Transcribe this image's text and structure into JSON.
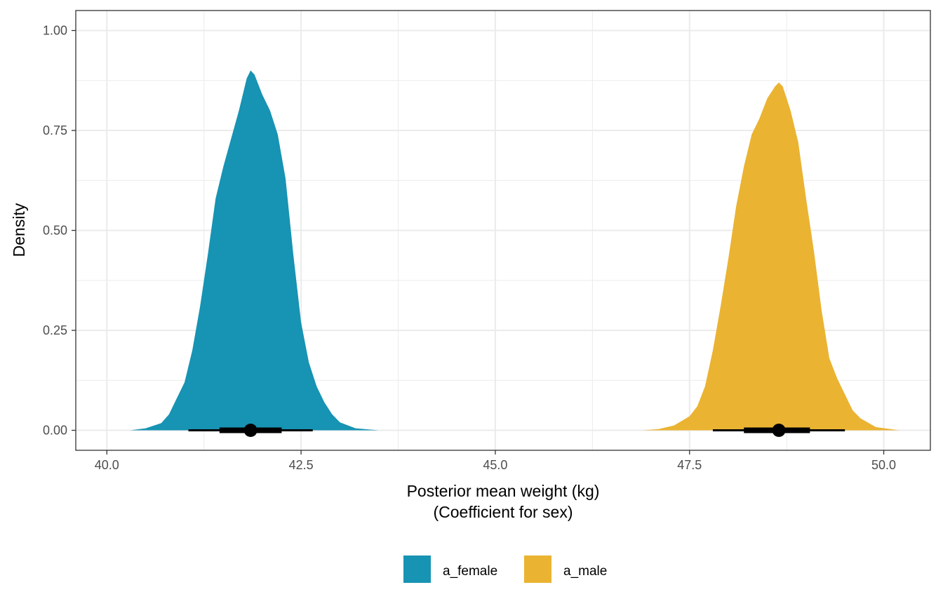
{
  "chart_data": {
    "type": "area",
    "subtype": "density (halfeye) with point interval",
    "xlabel_line1": "Posterior mean weight (kg)",
    "xlabel_line2": "(Coefficient for sex)",
    "ylabel": "Density",
    "xlim": [
      39.6,
      50.6
    ],
    "ylim": [
      -0.05,
      1.05
    ],
    "x_ticks": [
      40.0,
      42.5,
      45.0,
      47.5,
      50.0
    ],
    "x_tick_labels": [
      "40.0",
      "42.5",
      "45.0",
      "47.5",
      "50.0"
    ],
    "y_ticks": [
      0.0,
      0.25,
      0.5,
      0.75,
      1.0
    ],
    "y_tick_labels": [
      "0.00",
      "0.25",
      "0.50",
      "0.75",
      "1.00"
    ],
    "grid": true,
    "legend_position": "bottom",
    "series": [
      {
        "name": "a_female",
        "color": "#1793B3",
        "density": [
          [
            40.3,
            0.0
          ],
          [
            40.5,
            0.005
          ],
          [
            40.7,
            0.018
          ],
          [
            40.8,
            0.04
          ],
          [
            40.9,
            0.08
          ],
          [
            41.0,
            0.12
          ],
          [
            41.1,
            0.2
          ],
          [
            41.2,
            0.31
          ],
          [
            41.3,
            0.44
          ],
          [
            41.4,
            0.58
          ],
          [
            41.5,
            0.66
          ],
          [
            41.6,
            0.73
          ],
          [
            41.7,
            0.8
          ],
          [
            41.8,
            0.88
          ],
          [
            41.85,
            0.9
          ],
          [
            41.9,
            0.89
          ],
          [
            42.0,
            0.84
          ],
          [
            42.1,
            0.8
          ],
          [
            42.2,
            0.74
          ],
          [
            42.3,
            0.63
          ],
          [
            42.4,
            0.44
          ],
          [
            42.5,
            0.27
          ],
          [
            42.6,
            0.17
          ],
          [
            42.7,
            0.11
          ],
          [
            42.8,
            0.07
          ],
          [
            42.9,
            0.04
          ],
          [
            43.0,
            0.02
          ],
          [
            43.2,
            0.005
          ],
          [
            43.5,
            0.0
          ]
        ],
        "point": 41.85,
        "interval_66": [
          41.45,
          42.25
        ],
        "interval_95": [
          41.05,
          42.65
        ]
      },
      {
        "name": "a_male",
        "color": "#EAB332",
        "density": [
          [
            46.9,
            0.0
          ],
          [
            47.1,
            0.003
          ],
          [
            47.3,
            0.012
          ],
          [
            47.5,
            0.035
          ],
          [
            47.6,
            0.06
          ],
          [
            47.7,
            0.11
          ],
          [
            47.8,
            0.2
          ],
          [
            47.9,
            0.31
          ],
          [
            48.0,
            0.43
          ],
          [
            48.1,
            0.56
          ],
          [
            48.2,
            0.66
          ],
          [
            48.3,
            0.74
          ],
          [
            48.4,
            0.78
          ],
          [
            48.5,
            0.83
          ],
          [
            48.6,
            0.86
          ],
          [
            48.65,
            0.87
          ],
          [
            48.7,
            0.86
          ],
          [
            48.8,
            0.8
          ],
          [
            48.9,
            0.72
          ],
          [
            49.0,
            0.58
          ],
          [
            49.1,
            0.45
          ],
          [
            49.2,
            0.3
          ],
          [
            49.3,
            0.18
          ],
          [
            49.4,
            0.13
          ],
          [
            49.5,
            0.09
          ],
          [
            49.6,
            0.05
          ],
          [
            49.7,
            0.03
          ],
          [
            49.9,
            0.008
          ],
          [
            50.2,
            0.0
          ]
        ],
        "point": 48.65,
        "interval_66": [
          48.2,
          49.05
        ],
        "interval_95": [
          47.8,
          49.5
        ]
      }
    ]
  }
}
